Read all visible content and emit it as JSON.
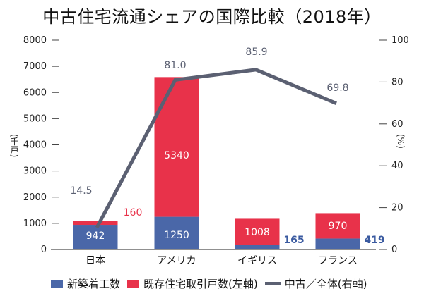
{
  "chart_data": {
    "type": "bar",
    "title": "中古住宅流通シェアの国際比較（2018年）",
    "categories": [
      "日本",
      "アメリカ",
      "イギリス",
      "フランス"
    ],
    "series": [
      {
        "name": "新築着工数",
        "type": "bar-stacked",
        "axis": "left",
        "color": "#4a67a8",
        "values": [
          942,
          1250,
          165,
          419
        ]
      },
      {
        "name": "既存住宅取引戸数(左軸)",
        "type": "bar-stacked",
        "axis": "left",
        "color": "#e8324a",
        "values": [
          160,
          5340,
          1008,
          970
        ]
      },
      {
        "name": "中古／全体(右軸)",
        "type": "line",
        "axis": "right",
        "color": "#5b6072",
        "values": [
          14.5,
          81.0,
          85.9,
          69.8
        ]
      }
    ],
    "data_labels": {
      "new_construction": [
        "942",
        "1250",
        "165",
        "419"
      ],
      "existing_transactions": [
        "160",
        "5340",
        "1008",
        "970"
      ],
      "share": [
        "14.5",
        "81.0",
        "85.9",
        "69.8"
      ]
    },
    "left_axis": {
      "label": "(千戸)",
      "ylim": [
        0,
        8000
      ],
      "ticks": [
        "0",
        "1000",
        "2000",
        "3000",
        "4000",
        "5000",
        "6000",
        "7000",
        "8000"
      ]
    },
    "right_axis": {
      "label": "(%)",
      "ylim": [
        0,
        100
      ],
      "ticks": [
        "0",
        "20",
        "40",
        "60",
        "80",
        "100"
      ]
    },
    "legend": {
      "position": "bottom",
      "entries": [
        "新築着工数",
        "既存住宅取引戸数(左軸)",
        "中古／全体(右軸)"
      ]
    },
    "grid": false
  }
}
